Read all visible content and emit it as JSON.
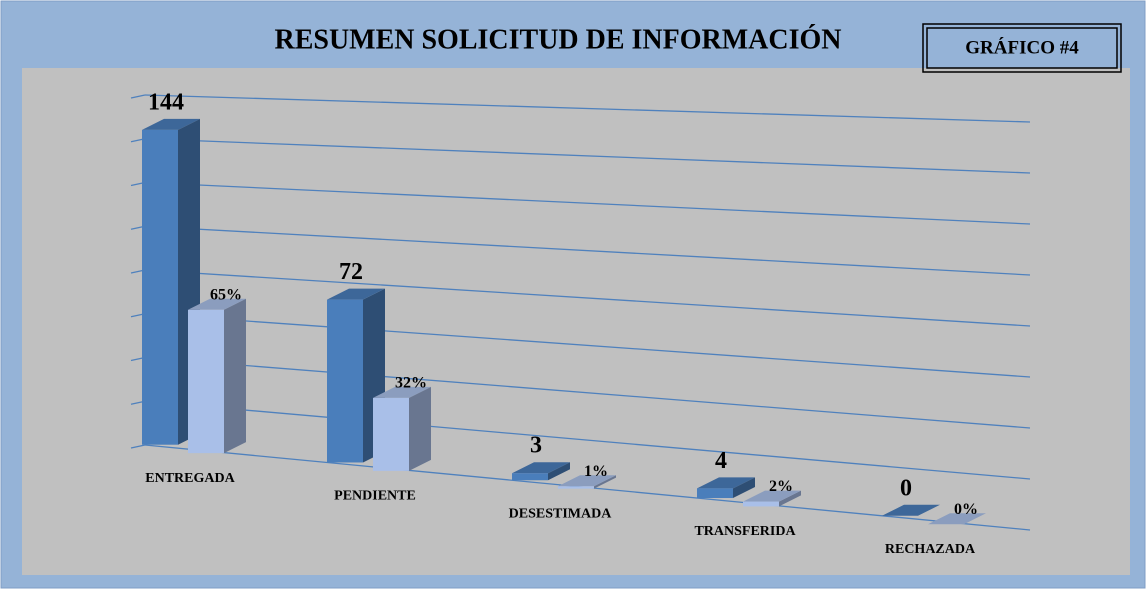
{
  "chart_data": {
    "type": "bar3d",
    "title": "RESUMEN SOLICITUD DE INFORMACIÓN",
    "badge": "GRÁFICO #4",
    "categories": [
      "ENTREGADA",
      "PENDIENTE",
      "DESESTIMADA",
      "TRANSFERIDA",
      "RECHAZADA"
    ],
    "series": [
      {
        "color": "#4a7ebb",
        "values": [
          144,
          72,
          3,
          4,
          0
        ]
      },
      {
        "color": "#a9bfe8",
        "values": [
          65,
          32,
          1,
          2,
          0
        ],
        "value_labels": [
          "65%",
          "32%",
          "1%",
          "2%",
          "0%"
        ]
      }
    ],
    "ylim": [
      0,
      160
    ],
    "yticks": [
      0,
      20,
      40,
      60,
      80,
      100,
      120,
      140,
      160
    ],
    "grid": true
  }
}
